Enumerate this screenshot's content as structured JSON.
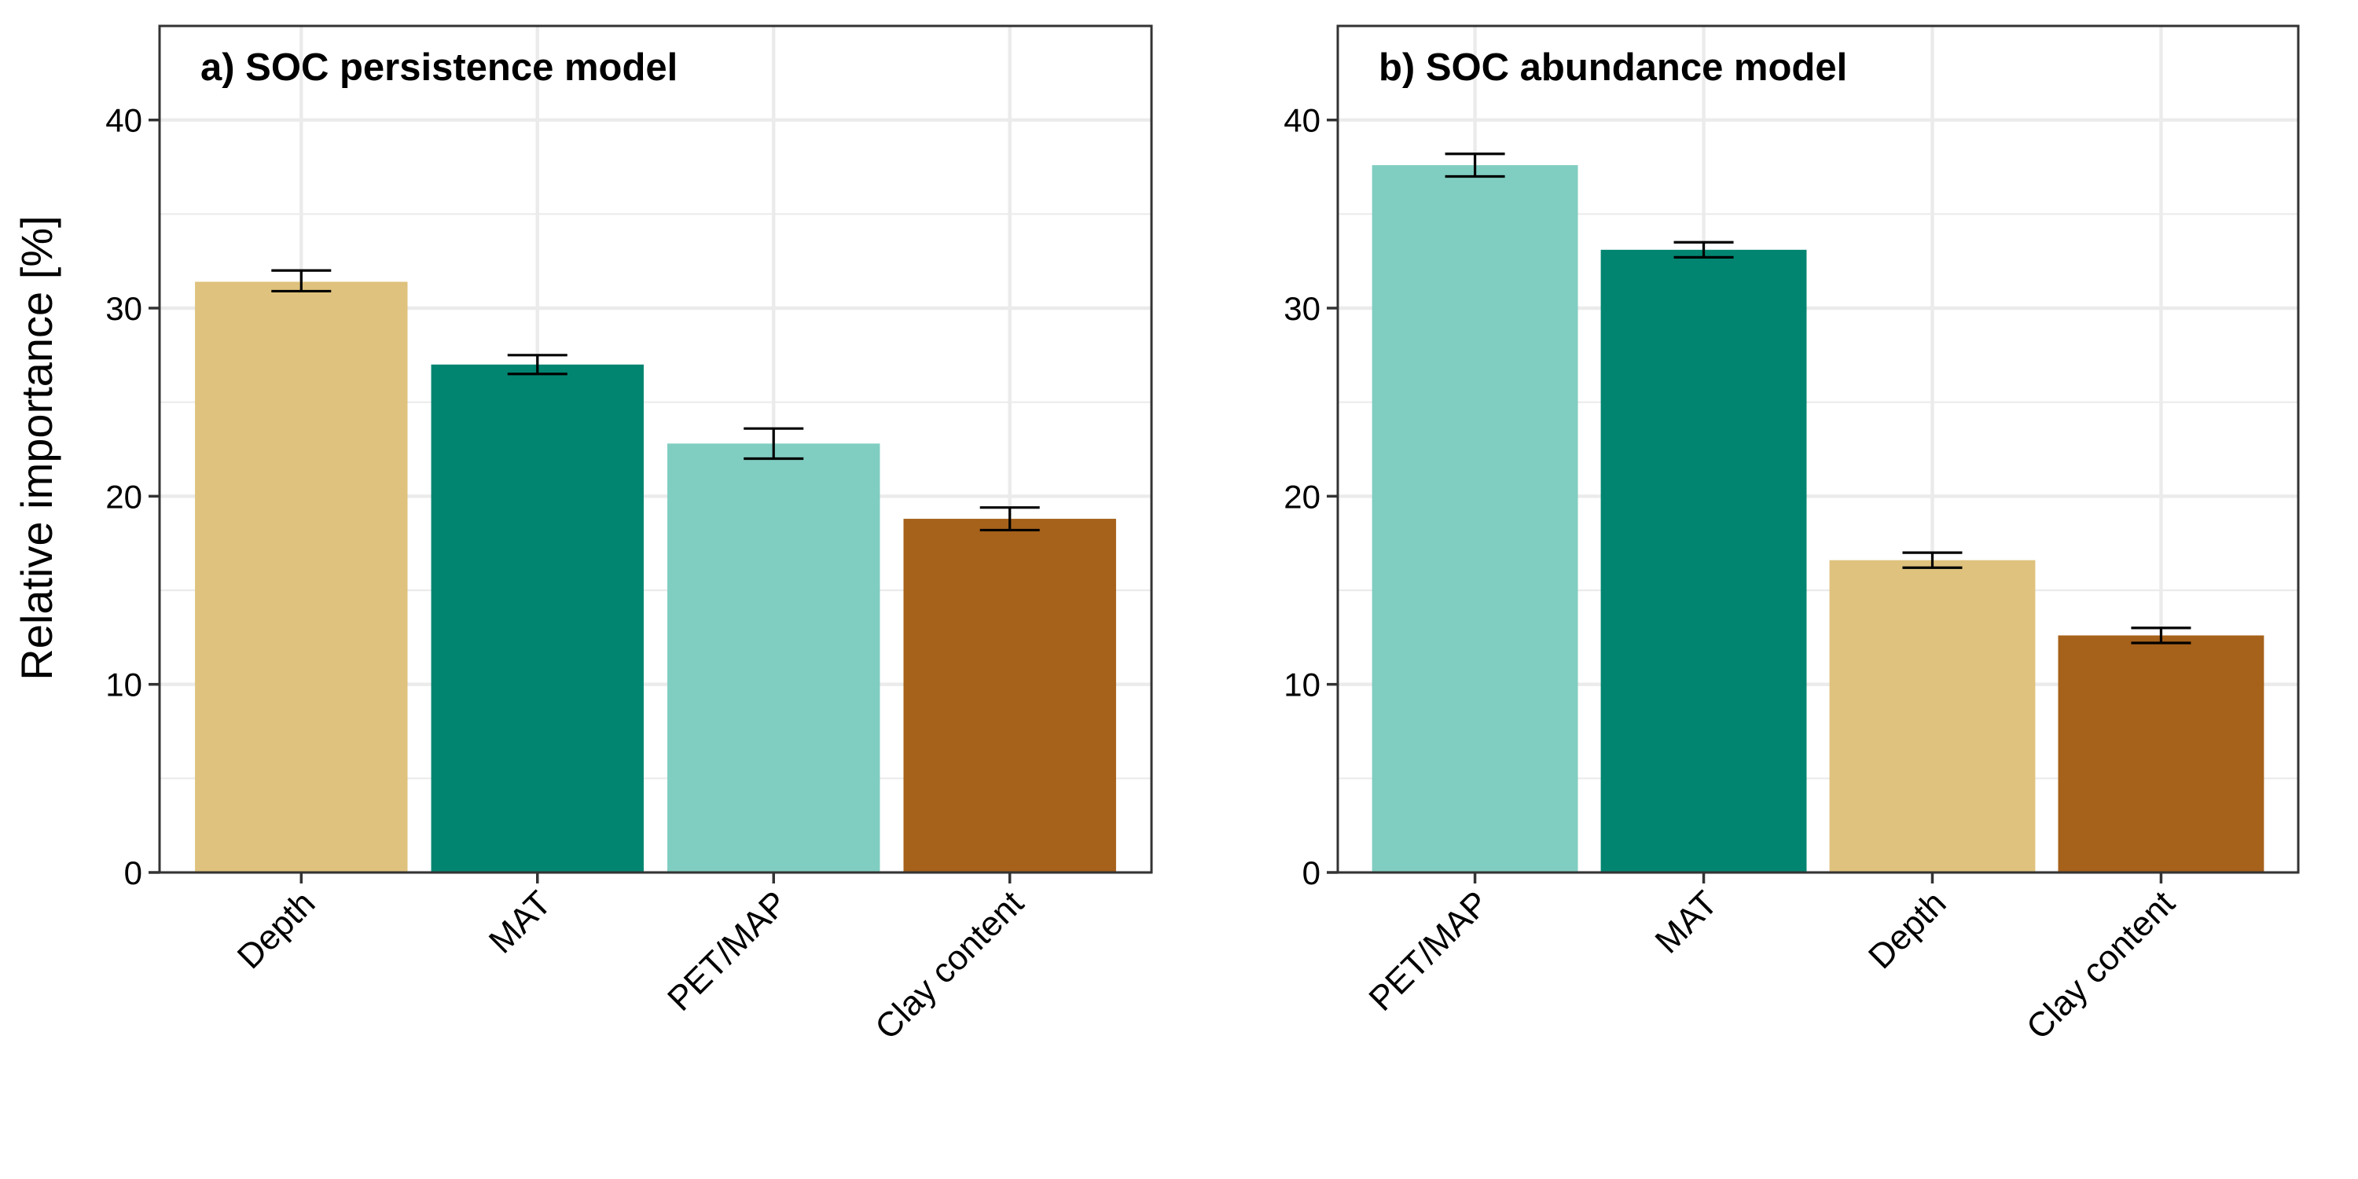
{
  "ylabel": "Relative importance [%]",
  "colors": {
    "Depth": "#DFC27D",
    "MAT": "#018571",
    "PET/MAP": "#80CDC1",
    "Clay content": "#A6611A",
    "grid": "#EBEBEB",
    "panel_border": "#333333"
  },
  "chart_data": [
    {
      "type": "bar",
      "title": "a) SOC persistence model",
      "categories": [
        "Depth",
        "MAT",
        "PET/MAP",
        "Clay content"
      ],
      "values": [
        31.4,
        27.0,
        22.8,
        18.8
      ],
      "error": [
        [
          30.9,
          32.0
        ],
        [
          26.5,
          27.5
        ],
        [
          22.0,
          23.6
        ],
        [
          18.2,
          19.4
        ]
      ],
      "ylabel": "Relative importance [%]",
      "ylim": [
        0,
        45
      ],
      "yticks": [
        0,
        10,
        20,
        30,
        40
      ],
      "grid": true
    },
    {
      "type": "bar",
      "title": "b) SOC abundance model",
      "categories": [
        "PET/MAP",
        "MAT",
        "Depth",
        "Clay content"
      ],
      "values": [
        37.6,
        33.1,
        16.6,
        12.6
      ],
      "error": [
        [
          37.0,
          38.2
        ],
        [
          32.7,
          33.5
        ],
        [
          16.2,
          17.0
        ],
        [
          12.2,
          13.0
        ]
      ],
      "ylabel": "",
      "ylim": [
        0,
        45
      ],
      "yticks": [
        0,
        10,
        20,
        30,
        40
      ],
      "grid": true
    }
  ]
}
